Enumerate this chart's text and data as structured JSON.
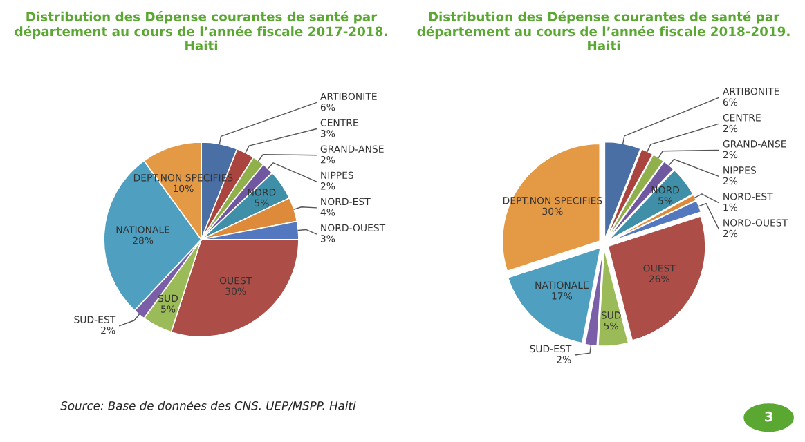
{
  "chart_data": [
    {
      "type": "pie",
      "title": "Distribution des Dépense courantes de santé par département au cours de l’année fiscale 2017-2018. Haiti",
      "categories": [
        "ARTIBONITE",
        "CENTRE",
        "GRAND-ANSE",
        "NIPPES",
        "NORD",
        "NORD-EST",
        "NORD-OUEST",
        "OUEST",
        "SUD",
        "SUD-EST",
        "NATIONALE",
        "DEPT.NON SPECIFIES"
      ],
      "values": [
        6,
        3,
        2,
        2,
        5,
        4,
        3,
        30,
        5,
        2,
        28,
        10
      ],
      "value_labels": [
        "6%",
        "3%",
        "2%",
        "2%",
        "5%",
        "4%",
        "3%",
        "30%",
        "5%",
        "2%",
        "28%",
        "10%"
      ],
      "colors": [
        "#4a6fa5",
        "#a9443f",
        "#8fb04a",
        "#6f58a0",
        "#3f8fa8",
        "#dd8a3a",
        "#5478c0",
        "#ac4e47",
        "#9bbb59",
        "#7a5ea8",
        "#4f9fc0",
        "#e49a45"
      ],
      "annotations": [
        "Source: Base de données des CNS. UEP/MSPP. Haiti"
      ]
    },
    {
      "type": "pie",
      "title": "Distribution des Dépense courantes de santé par département au cours de l’année fiscale 2018-2019. Haiti",
      "categories": [
        "ARTIBONITE",
        "CENTRE",
        "GRAND-ANSE",
        "NIPPES",
        "NORD",
        "NORD-EST",
        "NORD-OUEST",
        "OUEST",
        "SUD",
        "SUD-EST",
        "NATIONALE",
        "DEPT.NON SPECIFIES"
      ],
      "values": [
        6,
        2,
        2,
        2,
        5,
        1,
        2,
        26,
        5,
        2,
        17,
        30
      ],
      "value_labels": [
        "6%",
        "2%",
        "2%",
        "2%",
        "5%",
        "1%",
        "2%",
        "26%",
        "5%",
        "2%",
        "17%",
        "30%"
      ],
      "colors": [
        "#4a6fa5",
        "#a9443f",
        "#8fb04a",
        "#6f58a0",
        "#3f8fa8",
        "#dd8a3a",
        "#5478c0",
        "#ac4e47",
        "#9bbb59",
        "#7a5ea8",
        "#4f9fc0",
        "#e49a45"
      ],
      "annotations": [
        "3"
      ]
    }
  ]
}
